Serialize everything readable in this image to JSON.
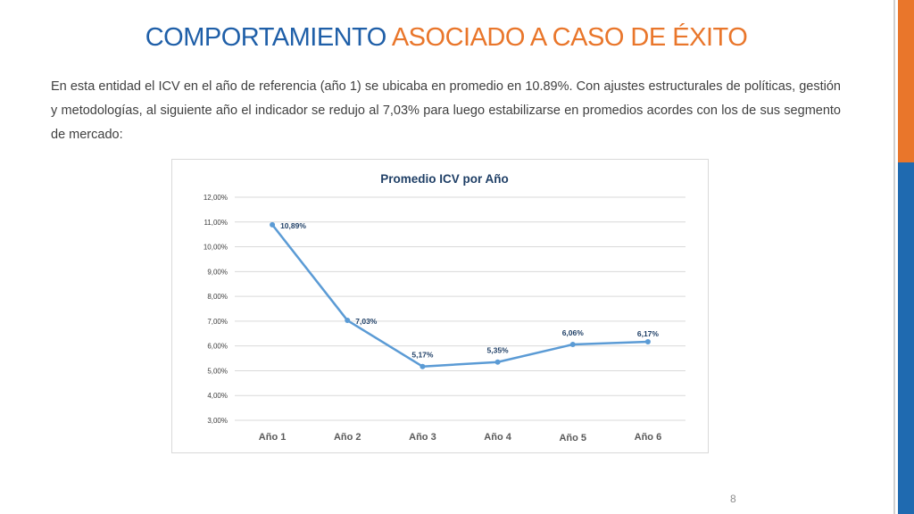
{
  "slide": {
    "title_part1": "COMPORTAMIENTO",
    "title_part2": "ASOCIADO A CASO DE ÉXITO",
    "body": "En esta entidad el ICV en el año de referencia (año 1) se ubicaba en promedio en 10.89%. Con ajustes estructurales de políticas, gestión y metodologías, al siguiente año el indicador se redujo al 7,03% para luego estabilizarse en promedios acordes con los de sus segmento de mercado:",
    "page_number": "8"
  },
  "colors": {
    "title_blue": "#1f5fa8",
    "title_orange": "#e9762b",
    "line": "#5b9bd5",
    "label": "#1f3f66",
    "side_blue": "#1f6ab0",
    "side_orange": "#e9762b"
  },
  "chart_data": {
    "type": "line",
    "title": "Promedio ICV por Año",
    "categories": [
      "Año 1",
      "Año 2",
      "Año 3",
      "Año 4",
      "Año 5",
      "Año 6"
    ],
    "values": [
      10.89,
      7.03,
      5.17,
      5.35,
      6.06,
      6.17
    ],
    "data_labels": [
      "10,89%",
      "7,03%",
      "5,17%",
      "5,35%",
      "6,06%",
      "6,17%"
    ],
    "y_ticks": [
      "3,00%",
      "4,00%",
      "5,00%",
      "6,00%",
      "7,00%",
      "8,00%",
      "9,00%",
      "10,00%",
      "11,00%",
      "12,00%"
    ],
    "ylim": [
      3,
      12
    ],
    "grid": true,
    "legend": "none"
  }
}
